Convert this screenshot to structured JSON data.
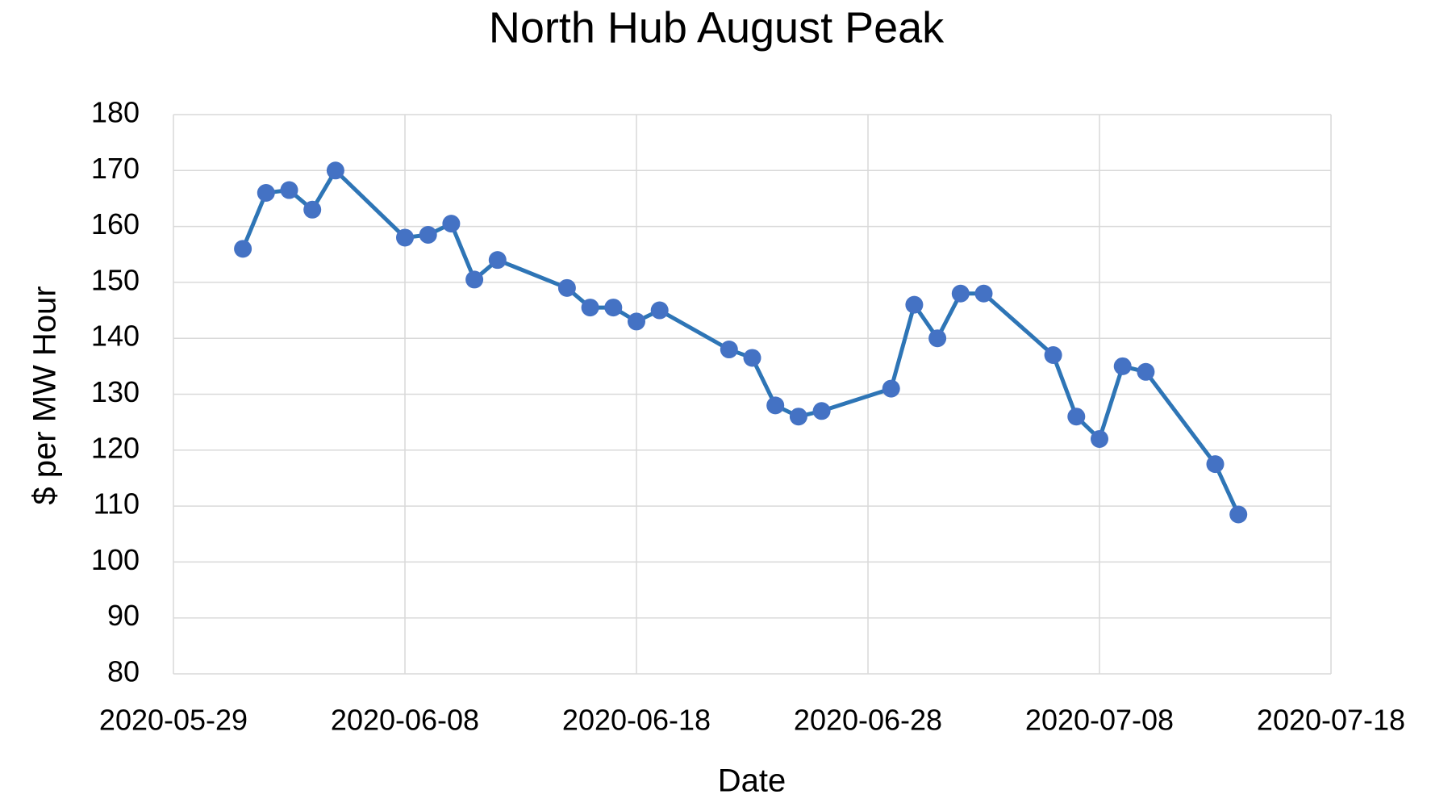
{
  "chart_data": {
    "type": "line",
    "title": "North Hub August Peak",
    "x_label": "Date",
    "y_label": "$ per MW Hour",
    "x": [
      "2020-06-01",
      "2020-06-02",
      "2020-06-03",
      "2020-06-04",
      "2020-06-05",
      "2020-06-08",
      "2020-06-09",
      "2020-06-10",
      "2020-06-11",
      "2020-06-12",
      "2020-06-15",
      "2020-06-16",
      "2020-06-17",
      "2020-06-18",
      "2020-06-19",
      "2020-06-22",
      "2020-06-23",
      "2020-06-24",
      "2020-06-25",
      "2020-06-26",
      "2020-06-29",
      "2020-06-30",
      "2020-07-01",
      "2020-07-02",
      "2020-07-03",
      "2020-07-06",
      "2020-07-07",
      "2020-07-08",
      "2020-07-09",
      "2020-07-10",
      "2020-07-13",
      "2020-07-14"
    ],
    "values": [
      156,
      166,
      166.5,
      163,
      170,
      158,
      158.5,
      160.5,
      150.5,
      154,
      149,
      145.5,
      145.5,
      143,
      145,
      138,
      136.5,
      128,
      126,
      127,
      131,
      146,
      140,
      148,
      148,
      137,
      126,
      122,
      135,
      134,
      117.5,
      108.5
    ],
    "color": "#2e75b6",
    "marker_color": "#4472c4",
    "xlim": [
      "2020-05-29",
      "2020-07-18"
    ],
    "xticks": [
      "2020-05-29",
      "2020-06-08",
      "2020-06-18",
      "2020-06-28",
      "2020-07-08",
      "2020-07-18"
    ],
    "ylim": [
      80,
      180
    ],
    "yticks": [
      80,
      90,
      100,
      110,
      120,
      130,
      140,
      150,
      160,
      170,
      180
    ],
    "grid": true
  }
}
